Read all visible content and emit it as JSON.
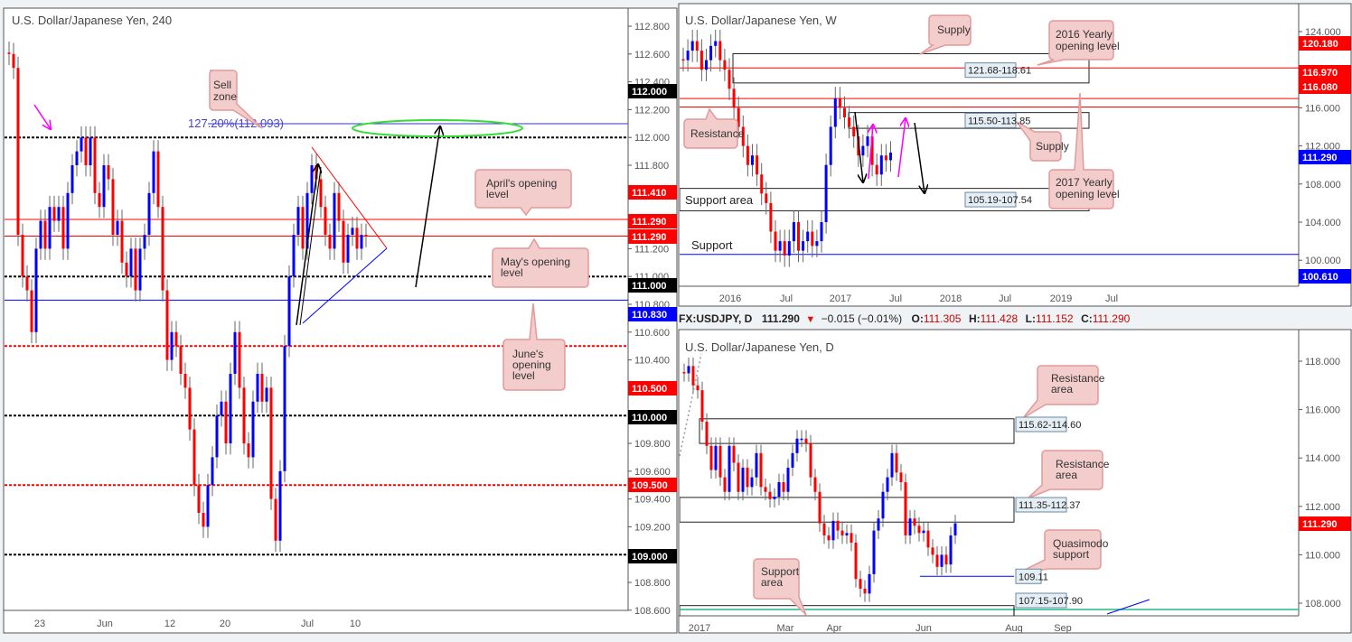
{
  "colors": {
    "up": "#0000ff",
    "down": "#ff0000",
    "callout_fill": "#f3cccc",
    "callout_stroke": "#e39a9a",
    "ellipse": "#33dd33",
    "magenta": "#ff00ff"
  },
  "chart_data": [
    {
      "type": "candlestick",
      "title": "U.S. Dollar/Japanese Yen, 240",
      "ylim": [
        108.55,
        112.9
      ],
      "y_ticks": [
        "112.800",
        "112.600",
        "112.400",
        "112.200",
        "112.000",
        "111.800",
        "111.200",
        "111.000",
        "110.800",
        "110.600",
        "110.400",
        "109.800",
        "109.600",
        "109.400",
        "109.200",
        "108.800",
        "108.600"
      ],
      "x_ticks": [
        "23",
        "Jun",
        "12",
        "20",
        "Jul",
        "10"
      ],
      "closes": [
        112.6,
        112.5,
        111.3,
        111.0,
        110.9,
        110.6,
        111.2,
        111.4,
        111.2,
        111.5,
        111.4,
        111.5,
        111.2,
        111.6,
        111.8,
        111.9,
        112.0,
        111.8,
        112.0,
        111.6,
        111.5,
        111.8,
        111.7,
        111.3,
        111.4,
        111.1,
        111.0,
        111.2,
        110.9,
        111.2,
        111.3,
        111.6,
        111.9,
        111.5,
        110.9,
        110.4,
        110.6,
        110.5,
        110.3,
        110.2,
        109.9,
        109.5,
        109.3,
        109.2,
        109.5,
        109.7,
        110.0,
        110.1,
        109.8,
        110.3,
        110.6,
        110.2,
        109.8,
        109.7,
        110.1,
        110.3,
        110.1,
        110.2,
        109.4,
        109.1,
        109.6,
        110.5,
        111.0,
        111.3,
        111.5,
        111.2,
        111.6,
        111.8,
        111.7,
        111.5,
        111.3,
        111.2,
        111.6,
        111.4,
        111.1,
        111.3,
        111.35,
        111.2,
        111.3,
        111.29
      ],
      "levels": [
        {
          "value": 112.0,
          "style": "dotted",
          "color": "#000000",
          "badge": "112.000"
        },
        {
          "value": 111.41,
          "style": "solid",
          "color": "#ff0000",
          "badge": "111.410"
        },
        {
          "value": 111.29,
          "style": "solid",
          "color": "#ff0000",
          "badge": "111.290"
        },
        {
          "value": 111.0,
          "style": "dotted",
          "color": "#000000",
          "badge": "111.000"
        },
        {
          "value": 110.83,
          "style": "solid",
          "color": "#0000ff",
          "badge": "110.830"
        },
        {
          "value": 110.5,
          "style": "dotted",
          "color": "#ff0000",
          "badge": "110.500"
        },
        {
          "value": 110.0,
          "style": "dotted",
          "color": "#000000",
          "badge": "110.000"
        },
        {
          "value": 109.5,
          "style": "dotted",
          "color": "#ff0000",
          "badge": "109.500"
        },
        {
          "value": 109.0,
          "style": "dotted",
          "color": "#000000",
          "badge": "109.000"
        }
      ],
      "extra_badge": "111.290",
      "fib": {
        "value": 112.093,
        "label": "127.20%(112.093)"
      },
      "annotations": {
        "sell_zone": [
          "Sell",
          "zone"
        ],
        "april": [
          "April's opening",
          "level"
        ],
        "may": [
          "May's opening",
          "level"
        ],
        "june": [
          "June's",
          "opening",
          "level"
        ]
      }
    },
    {
      "type": "candlestick",
      "title": "U.S. Dollar/Japanese Yen, W",
      "ylim": [
        97,
        127
      ],
      "y_ticks": [
        "124.000",
        "116.000",
        "112.000",
        "108.000",
        "104.000",
        "100.000"
      ],
      "x_ticks": [
        "2016",
        "Jul",
        "2017",
        "Jul",
        "2018",
        "Jul",
        "2019",
        "Jul"
      ],
      "closes": [
        121,
        122,
        123,
        122,
        120,
        121,
        122.5,
        123,
        121,
        120,
        118,
        116,
        114,
        112,
        110,
        111,
        109,
        107,
        106,
        103,
        101,
        102,
        100.5,
        102,
        104,
        101,
        102,
        103,
        101.5,
        102,
        104,
        110,
        114,
        117,
        116,
        115,
        114,
        113,
        111,
        112,
        113,
        110,
        109,
        111,
        110.5,
        111.3
      ],
      "levels": [
        {
          "value": 120.18,
          "color": "#ff0000",
          "badge": "120.180"
        },
        {
          "value": 116.97,
          "color": "#ff0000",
          "badge": "116.970"
        },
        {
          "value": 116.08,
          "color": "#ff0000",
          "badge": "116.080"
        },
        {
          "value": 100.61,
          "color": "#0000ff",
          "badge": "100.610"
        }
      ],
      "current_badge": "111.290",
      "zones": [
        {
          "top": 121.68,
          "bottom": 118.61,
          "label": "121.68-118.61"
        },
        {
          "top": 115.5,
          "bottom": 113.85,
          "label": "115.50-113.85"
        },
        {
          "top": 107.54,
          "bottom": 105.19,
          "label": "105.19-107.54"
        }
      ],
      "annotations": {
        "supply_top": "Supply",
        "supply_right": "Supply",
        "resistance": "Resistance",
        "yearly_2016": [
          "2016 Yearly",
          "opening level"
        ],
        "yearly_2017": [
          "2017 Yearly",
          "opening level"
        ],
        "support_area": "Support area",
        "support": "Support"
      }
    },
    {
      "type": "candlestick",
      "title": "U.S. Dollar/Japanese Yen, D",
      "ylim": [
        107.4,
        119.3
      ],
      "y_ticks": [
        "118.000",
        "116.000",
        "114.000",
        "112.000",
        "110.000",
        "108.000"
      ],
      "x_ticks": [
        "2017",
        "Mar",
        "Apr",
        "Jun",
        "Aug",
        "Sep"
      ],
      "closes": [
        117.5,
        117.8,
        117.0,
        116.8,
        115.5,
        114.5,
        113.5,
        114.5,
        113.2,
        112.6,
        114.5,
        113.8,
        112.6,
        113.6,
        112.8,
        113.2,
        114.2,
        112.8,
        112.6,
        112.3,
        112.4,
        113.0,
        112.6,
        113.6,
        114.2,
        114.8,
        114.8,
        114.6,
        113.2,
        112.6,
        111.3,
        110.8,
        110.6,
        111.4,
        111.0,
        110.8,
        110.9,
        110.5,
        109.0,
        108.6,
        108.4,
        109.2,
        111.0,
        111.5,
        112.6,
        113.2,
        114.2,
        113.4,
        113.0,
        110.8,
        111.5,
        111.2,
        110.9,
        111.0,
        110.3,
        110.0,
        109.5,
        110.0,
        109.6,
        110.8,
        111.3
      ],
      "current_badge": "111.290",
      "zones": [
        {
          "top": 115.62,
          "bottom": 114.6,
          "label": "115.62-114.60"
        },
        {
          "top": 112.37,
          "bottom": 111.35,
          "label": "111.35-112.37"
        },
        {
          "top": 107.9,
          "bottom": 107.15,
          "label": "107.15-107.90"
        }
      ],
      "qm_level": {
        "value": 109.11,
        "label": "109.11"
      },
      "annotations": {
        "res1": [
          "Resistance",
          "area"
        ],
        "res2": [
          "Resistance",
          "area"
        ],
        "qm": [
          "Quasimodo",
          "support"
        ],
        "support": [
          "Support",
          "area"
        ]
      }
    }
  ],
  "daily_header": {
    "symbol": "FX:USDJPY, D",
    "price": "111.290",
    "change": "−0.015 (−0.01%)",
    "o_label": "O:",
    "o": "111.305",
    "h_label": "H:",
    "h": "111.428",
    "l_label": "L:",
    "l": "111.152",
    "c_label": "C:",
    "c": "111.290"
  }
}
